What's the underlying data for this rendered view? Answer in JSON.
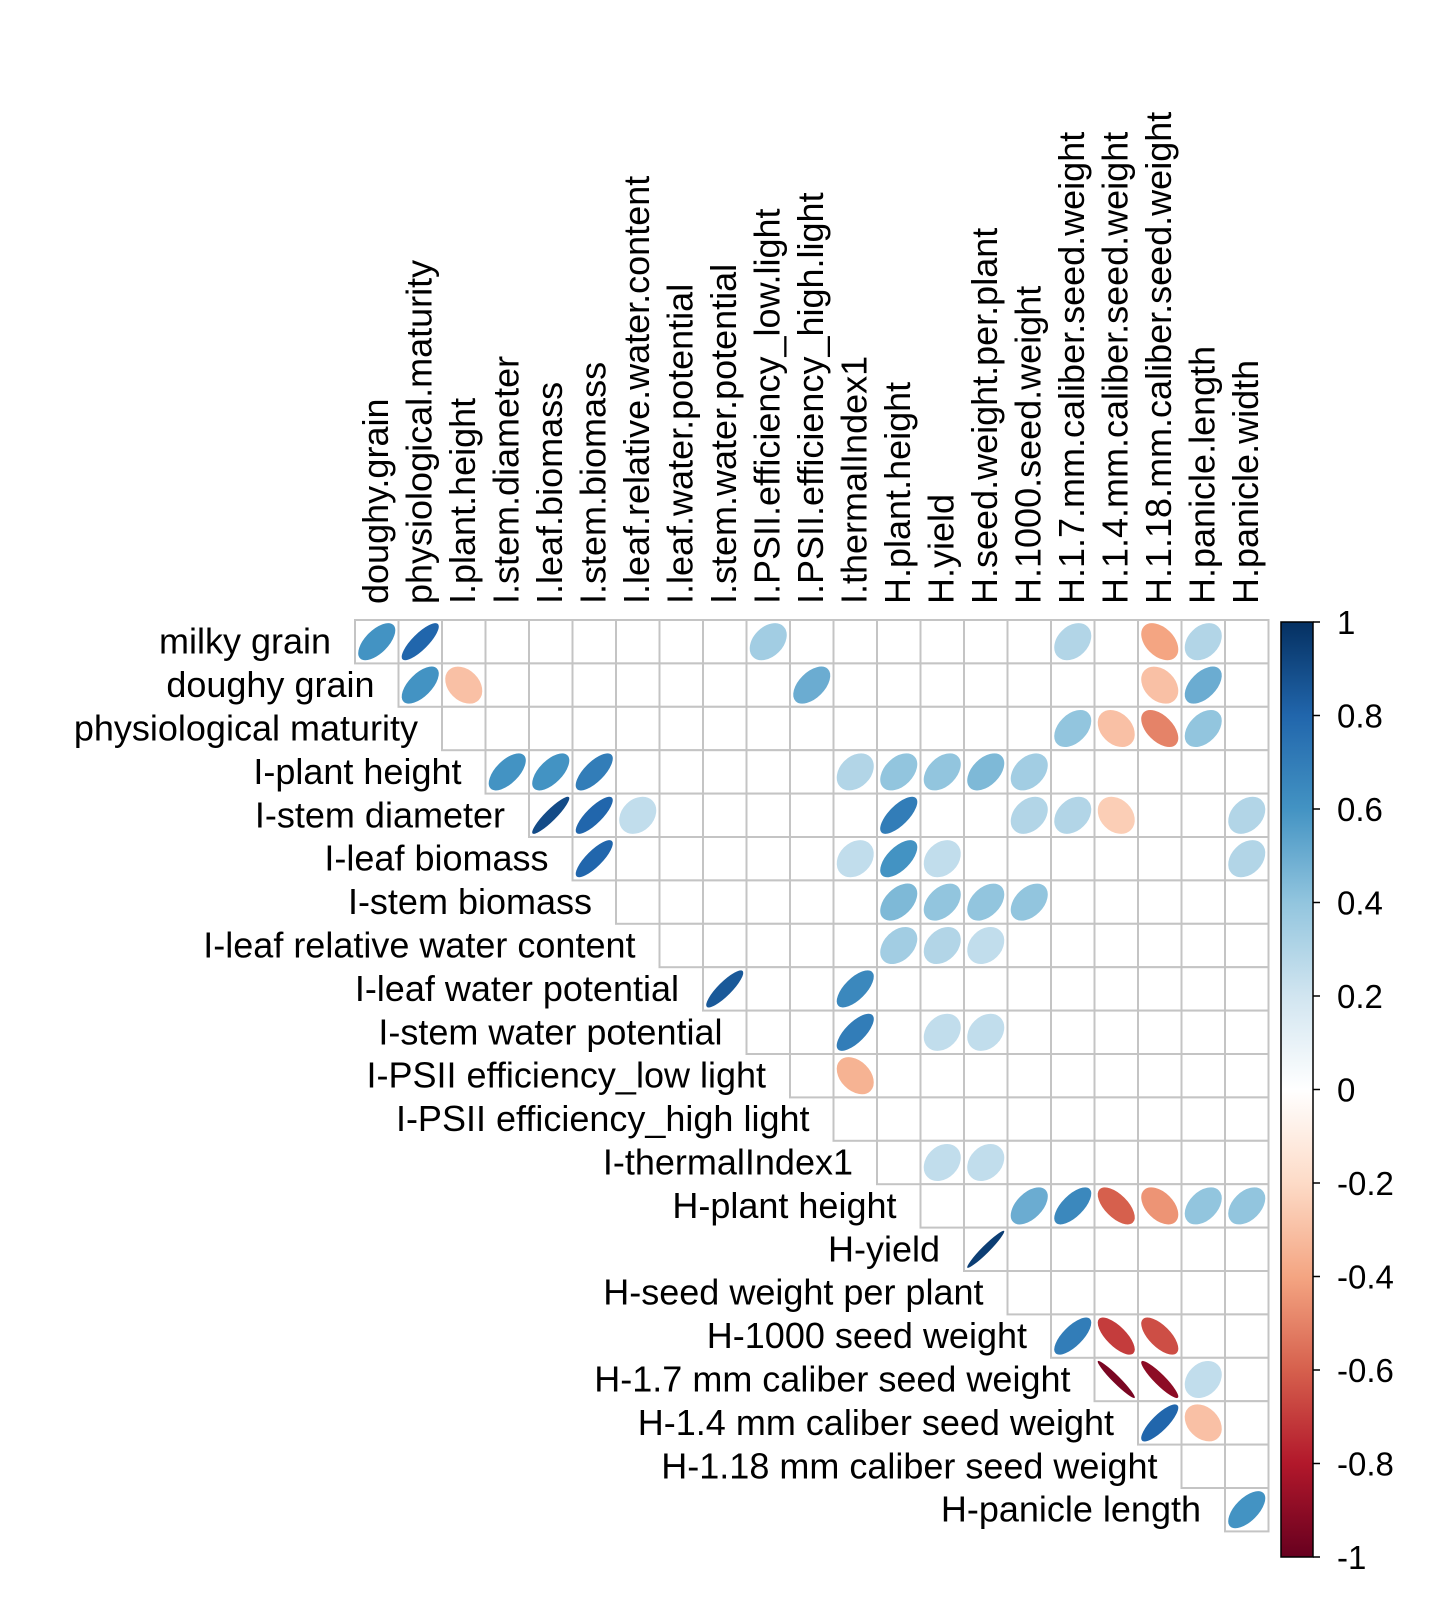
{
  "chart_data": {
    "type": "heatmap",
    "subtype": "correlation-ellipse-upper",
    "row_labels": [
      "milky grain",
      "doughy grain",
      "physiological maturity",
      "I-plant height",
      "I-stem diameter",
      "I-leaf biomass",
      "I-stem biomass",
      "I-leaf relative water content",
      "I-leaf water potential",
      "I-stem water potential",
      "I-PSII efficiency_low light",
      "I-PSII efficiency_high light",
      "I-thermalIndex1",
      "H-plant height",
      "H-yield",
      "H-seed weight per plant",
      "H-1000 seed weight",
      "H-1.7 mm caliber seed weight",
      "H-1.4 mm caliber seed weight",
      "H-1.18 mm caliber seed weight",
      "H-panicle length"
    ],
    "column_labels": [
      "doughy.grain",
      "physiological.maturity",
      "I.plant.height",
      "I.stem.diameter",
      "I.leaf.biomass",
      "I.stem.biomass",
      "I.leaf.relative.water.content",
      "I.leaf.water.potential",
      "I.stem.water.potential",
      "I.PSII.efficiency_low.light",
      "I.PSII.efficiency_high.light",
      "I.thermalIndex1",
      "H.plant.height",
      "H.yield",
      "H.seed.weight.per.plant",
      "H.1000.seed.weight",
      "H.1.7.mm.caliber.seed.weight",
      "H.1.4.mm.caliber.seed.weight",
      "H.1.18.mm.caliber.seed.weight",
      "H.panicle.length",
      "H.panicle.width"
    ],
    "cells": [
      {
        "row": 0,
        "col": 0,
        "value": 0.6
      },
      {
        "row": 0,
        "col": 1,
        "value": 0.8
      },
      {
        "row": 0,
        "col": 9,
        "value": 0.35
      },
      {
        "row": 0,
        "col": 16,
        "value": 0.3
      },
      {
        "row": 0,
        "col": 18,
        "value": -0.4
      },
      {
        "row": 0,
        "col": 19,
        "value": 0.3
      },
      {
        "row": 1,
        "col": 1,
        "value": 0.6
      },
      {
        "row": 1,
        "col": 2,
        "value": -0.3
      },
      {
        "row": 1,
        "col": 10,
        "value": 0.5
      },
      {
        "row": 1,
        "col": 18,
        "value": -0.3
      },
      {
        "row": 1,
        "col": 19,
        "value": 0.5
      },
      {
        "row": 2,
        "col": 16,
        "value": 0.4
      },
      {
        "row": 2,
        "col": 17,
        "value": -0.3
      },
      {
        "row": 2,
        "col": 18,
        "value": -0.5
      },
      {
        "row": 2,
        "col": 19,
        "value": 0.4
      },
      {
        "row": 3,
        "col": 3,
        "value": 0.6
      },
      {
        "row": 3,
        "col": 4,
        "value": 0.6
      },
      {
        "row": 3,
        "col": 5,
        "value": 0.7
      },
      {
        "row": 3,
        "col": 11,
        "value": 0.3
      },
      {
        "row": 3,
        "col": 12,
        "value": 0.4
      },
      {
        "row": 3,
        "col": 13,
        "value": 0.4
      },
      {
        "row": 3,
        "col": 14,
        "value": 0.45
      },
      {
        "row": 3,
        "col": 15,
        "value": 0.35
      },
      {
        "row": 4,
        "col": 4,
        "value": 0.9
      },
      {
        "row": 4,
        "col": 5,
        "value": 0.8
      },
      {
        "row": 4,
        "col": 6,
        "value": 0.25
      },
      {
        "row": 4,
        "col": 12,
        "value": 0.7
      },
      {
        "row": 4,
        "col": 15,
        "value": 0.3
      },
      {
        "row": 4,
        "col": 16,
        "value": 0.3
      },
      {
        "row": 4,
        "col": 17,
        "value": -0.25
      },
      {
        "row": 4,
        "col": 20,
        "value": 0.3
      },
      {
        "row": 5,
        "col": 5,
        "value": 0.8
      },
      {
        "row": 5,
        "col": 11,
        "value": 0.25
      },
      {
        "row": 5,
        "col": 12,
        "value": 0.6
      },
      {
        "row": 5,
        "col": 13,
        "value": 0.25
      },
      {
        "row": 5,
        "col": 20,
        "value": 0.3
      },
      {
        "row": 6,
        "col": 12,
        "value": 0.45
      },
      {
        "row": 6,
        "col": 13,
        "value": 0.4
      },
      {
        "row": 6,
        "col": 14,
        "value": 0.4
      },
      {
        "row": 6,
        "col": 15,
        "value": 0.4
      },
      {
        "row": 7,
        "col": 12,
        "value": 0.35
      },
      {
        "row": 7,
        "col": 13,
        "value": 0.3
      },
      {
        "row": 7,
        "col": 14,
        "value": 0.25
      },
      {
        "row": 8,
        "col": 8,
        "value": 0.85
      },
      {
        "row": 8,
        "col": 11,
        "value": 0.65
      },
      {
        "row": 9,
        "col": 11,
        "value": 0.7
      },
      {
        "row": 9,
        "col": 13,
        "value": 0.25
      },
      {
        "row": 9,
        "col": 14,
        "value": 0.25
      },
      {
        "row": 10,
        "col": 11,
        "value": -0.35
      },
      {
        "row": 12,
        "col": 13,
        "value": 0.25
      },
      {
        "row": 12,
        "col": 14,
        "value": 0.25
      },
      {
        "row": 13,
        "col": 15,
        "value": 0.5
      },
      {
        "row": 13,
        "col": 16,
        "value": 0.65
      },
      {
        "row": 13,
        "col": 17,
        "value": -0.6
      },
      {
        "row": 13,
        "col": 18,
        "value": -0.45
      },
      {
        "row": 13,
        "col": 19,
        "value": 0.4
      },
      {
        "row": 13,
        "col": 20,
        "value": 0.4
      },
      {
        "row": 14,
        "col": 14,
        "value": 0.95
      },
      {
        "row": 16,
        "col": 16,
        "value": 0.7
      },
      {
        "row": 16,
        "col": 17,
        "value": -0.7
      },
      {
        "row": 16,
        "col": 18,
        "value": -0.65
      },
      {
        "row": 17,
        "col": 17,
        "value": -0.95
      },
      {
        "row": 17,
        "col": 18,
        "value": -0.9
      },
      {
        "row": 17,
        "col": 19,
        "value": 0.25
      },
      {
        "row": 18,
        "col": 18,
        "value": 0.8
      },
      {
        "row": 18,
        "col": 19,
        "value": -0.3
      },
      {
        "row": 20,
        "col": 20,
        "value": 0.6
      }
    ],
    "color_scale": {
      "range": [
        -1,
        1
      ],
      "ticks": [
        "1",
        "0.8",
        "0.6",
        "0.4",
        "0.2",
        "0",
        "-0.2",
        "-0.4",
        "-0.6",
        "-0.8",
        "-1"
      ],
      "stops": [
        "#67001F",
        "#B2182B",
        "#D6604D",
        "#F4A582",
        "#FDDBC7",
        "#FFFFFF",
        "#D1E5F0",
        "#92C5DE",
        "#4393C3",
        "#2166AC",
        "#053061"
      ]
    },
    "grid": true
  }
}
